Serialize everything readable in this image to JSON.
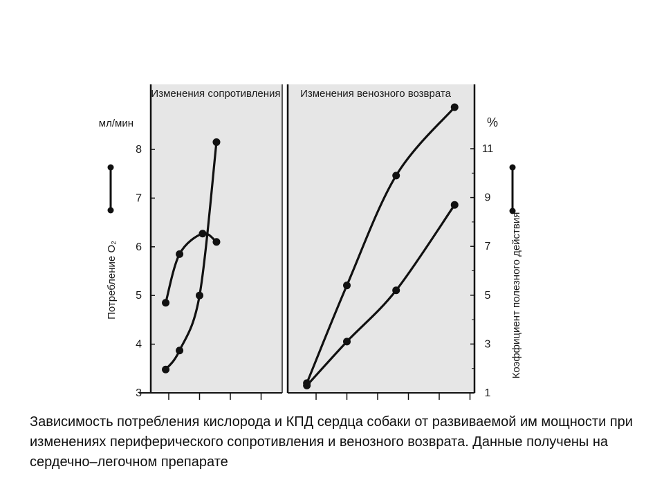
{
  "caption": "Зависимость потребления кислорода и КПД сердца собаки от развиваемой им мощности при изменениях периферического сопротивления и венозного возврата. Данные получены на сердечно–легочном препарате",
  "colors": {
    "panel": "#e6e6e6",
    "ink": "#111111"
  },
  "chart_data": [
    {
      "type": "line",
      "title": "Изменения сопротивления",
      "ylabel": "Потребление O₂",
      "yunit": "мл/мин",
      "ylim": [
        3,
        9
      ],
      "yticks": [
        3,
        4,
        5,
        6,
        7,
        8
      ],
      "x_ticks_unlabeled": [
        0,
        1,
        2,
        3
      ],
      "legend": "left: line with filled circles at both ends",
      "series": [
        {
          "x": [
            -0.1,
            0.35,
            1.1,
            1.55
          ],
          "values": [
            4.85,
            5.85,
            6.27,
            6.1
          ]
        },
        {
          "x": [
            -0.1,
            0.35,
            1.0,
            1.55
          ],
          "values": [
            3.48,
            3.87,
            5.0,
            8.15
          ]
        }
      ]
    },
    {
      "type": "line",
      "title": "Изменения венозного возврата",
      "ylabel": "Коэффициент полезного действия",
      "yunit": "%",
      "ylim": [
        1,
        13
      ],
      "yticks": [
        1,
        3,
        5,
        7,
        9,
        11
      ],
      "x_ticks_unlabeled": [
        0,
        1,
        2,
        3,
        4,
        5
      ],
      "legend": "right: line with filled circles at both ends",
      "series": [
        {
          "x": [
            -0.3,
            1.0,
            2.6,
            4.5
          ],
          "values": [
            1.4,
            5.4,
            9.9,
            12.7
          ]
        },
        {
          "x": [
            -0.3,
            1.0,
            2.6,
            4.5
          ],
          "values": [
            1.3,
            3.1,
            5.2,
            8.7
          ]
        }
      ]
    }
  ]
}
